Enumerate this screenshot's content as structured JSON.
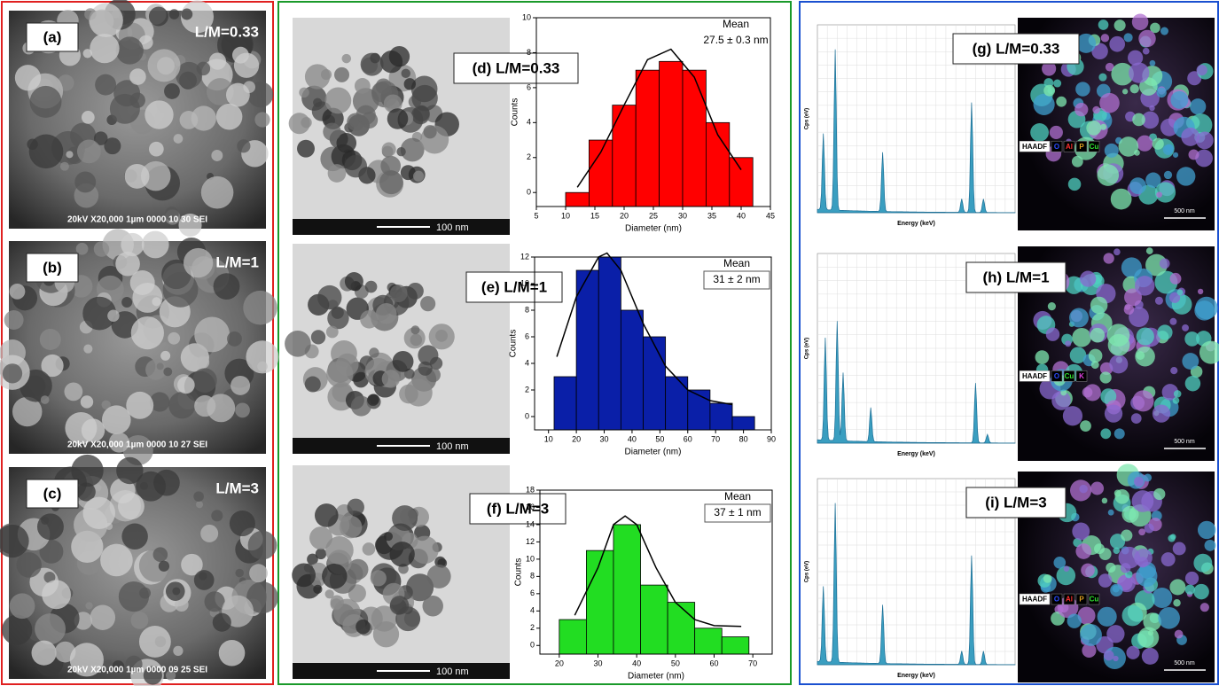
{
  "sem": [
    {
      "label": "(a)",
      "ratio": "L/M=0.33",
      "info": "20kV   X20,000   1µm    0000   10 30 SEI"
    },
    {
      "label": "(b)",
      "ratio": "L/M=1",
      "info": "20kV   X20,000   1µm    0000   10 27 SEI"
    },
    {
      "label": "(c)",
      "ratio": "L/M=3",
      "info": "20kV   X20,000   1µm    0000   09 25 SEI"
    }
  ],
  "tem": [
    {
      "label": "(d) L/M=0.33",
      "scale": "100 nm"
    },
    {
      "label": "(e) L/M=1",
      "scale": "100 nm"
    },
    {
      "label": "(f) L/M=3",
      "scale": "100 nm"
    }
  ],
  "eds": [
    {
      "label": "(g) L/M=0.33",
      "y_label": "Cps (eV)",
      "x_label": "Energy (keV)",
      "scale": "500 nm",
      "map_legend": [
        "HAADF",
        "O",
        "Al",
        "P",
        "Cu"
      ]
    },
    {
      "label": "(h) L/M=1",
      "y_label": "Cps (eV)",
      "x_label": "Energy (keV)",
      "scale": "500 nm",
      "map_legend": [
        "HAADF",
        "O",
        "Cu",
        "K"
      ]
    },
    {
      "label": "(i) L/M=3",
      "y_label": "Cps (eV)",
      "x_label": "Energy (keV)",
      "scale": "500 nm",
      "map_legend": [
        "HAADF",
        "O",
        "Al",
        "P",
        "Cu"
      ]
    }
  ],
  "chart_data": [
    {
      "type": "histogram",
      "x_label": "Diameter (nm)",
      "y_label": "Counts",
      "color": "#ff0000",
      "bins": [
        10,
        14,
        18,
        22,
        26,
        30,
        34,
        38,
        42
      ],
      "values": [
        0,
        3,
        5,
        7,
        7.5,
        7,
        4,
        2
      ],
      "xlim": [
        5,
        45
      ],
      "ylim": [
        -0.8,
        10
      ],
      "xticks": [
        5,
        10,
        15,
        20,
        25,
        30,
        35,
        40,
        45
      ],
      "yticks": [
        0,
        2,
        4,
        6,
        8,
        10
      ],
      "annotation": [
        "Mean",
        "27.5 ± 0.3 nm"
      ],
      "fit": {
        "x": [
          12,
          16,
          20,
          24,
          28,
          32,
          36,
          40
        ],
        "y": [
          0.3,
          2.3,
          5,
          7.6,
          8.2,
          6.6,
          3.3,
          1.3
        ]
      }
    },
    {
      "type": "histogram",
      "x_label": "Diameter (nm)",
      "y_label": "Counts",
      "color": "#0a1fa8",
      "bins": [
        12,
        20,
        28,
        36,
        44,
        52,
        60,
        68,
        76,
        84
      ],
      "values": [
        3,
        11,
        12,
        8,
        6,
        3,
        2,
        1,
        0
      ],
      "xlim": [
        5,
        90
      ],
      "ylim": [
        -1,
        12
      ],
      "xticks": [
        10,
        20,
        30,
        40,
        50,
        60,
        70,
        80,
        90
      ],
      "yticks": [
        0,
        2,
        4,
        6,
        8,
        10,
        12
      ],
      "annotation": [
        "Mean",
        "31 ± 2 nm"
      ],
      "fit": {
        "x": [
          13,
          20,
          28,
          31,
          36,
          44,
          52,
          60,
          68,
          76
        ],
        "y": [
          4.5,
          9,
          12,
          12.3,
          11,
          7,
          3.8,
          2,
          1.2,
          0.9
        ]
      }
    },
    {
      "type": "histogram",
      "x_label": "Diameter (nm)",
      "y_label": "Counts",
      "color": "#22dd22",
      "bins": [
        20,
        27,
        34,
        41,
        48,
        55,
        62,
        69
      ],
      "values": [
        3,
        11,
        14,
        7,
        5,
        2,
        1
      ],
      "xlim": [
        15,
        75
      ],
      "ylim": [
        -1,
        18
      ],
      "xticks": [
        20,
        30,
        40,
        50,
        60,
        70
      ],
      "yticks": [
        0,
        2,
        4,
        6,
        8,
        10,
        12,
        14,
        16,
        18
      ],
      "annotation": [
        "Mean",
        "37 ± 1 nm"
      ],
      "fit": {
        "x": [
          24,
          30,
          34,
          37,
          40,
          45,
          50,
          55,
          60,
          67
        ],
        "y": [
          3.5,
          9,
          14,
          15,
          14,
          9,
          5,
          3,
          2.3,
          2.2
        ]
      }
    }
  ]
}
